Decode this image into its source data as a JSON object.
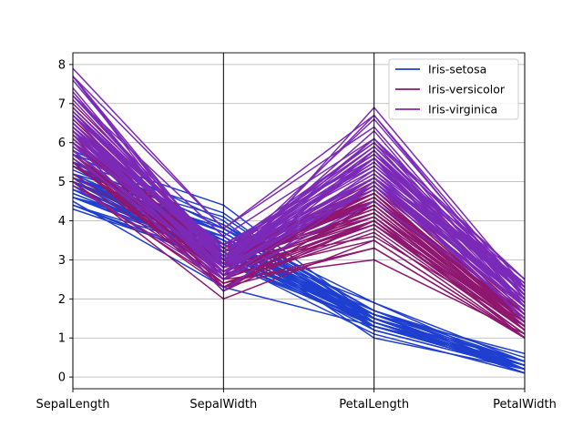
{
  "chart_data": {
    "type": "parallel_coordinates",
    "title": "",
    "dimensions": [
      "SepalLength",
      "SepalWidth",
      "PetalLength",
      "PetalWidth"
    ],
    "ylim": [
      -0.3,
      8.3
    ],
    "yticks": [
      0,
      1,
      2,
      3,
      4,
      5,
      6,
      7,
      8
    ],
    "grid": true,
    "legend_position": "top-right",
    "series": [
      {
        "name": "Iris-setosa",
        "color": "#1f3fd0",
        "lines": [
          [
            5.1,
            3.5,
            1.4,
            0.2
          ],
          [
            4.9,
            3.0,
            1.4,
            0.2
          ],
          [
            4.7,
            3.2,
            1.3,
            0.2
          ],
          [
            4.6,
            3.1,
            1.5,
            0.2
          ],
          [
            5.0,
            3.6,
            1.4,
            0.2
          ],
          [
            5.4,
            3.9,
            1.7,
            0.4
          ],
          [
            4.6,
            3.4,
            1.4,
            0.3
          ],
          [
            5.0,
            3.4,
            1.5,
            0.2
          ],
          [
            4.4,
            2.9,
            1.4,
            0.2
          ],
          [
            4.9,
            3.1,
            1.5,
            0.1
          ],
          [
            5.4,
            3.7,
            1.5,
            0.2
          ],
          [
            4.8,
            3.4,
            1.6,
            0.2
          ],
          [
            4.8,
            3.0,
            1.4,
            0.1
          ],
          [
            4.3,
            3.0,
            1.1,
            0.1
          ],
          [
            5.8,
            4.0,
            1.2,
            0.2
          ],
          [
            5.7,
            4.4,
            1.5,
            0.4
          ],
          [
            5.4,
            3.9,
            1.3,
            0.4
          ],
          [
            5.1,
            3.5,
            1.4,
            0.3
          ],
          [
            5.7,
            3.8,
            1.7,
            0.3
          ],
          [
            5.1,
            3.8,
            1.5,
            0.3
          ],
          [
            5.4,
            3.4,
            1.7,
            0.2
          ],
          [
            5.1,
            3.7,
            1.5,
            0.4
          ],
          [
            4.6,
            3.6,
            1.0,
            0.2
          ],
          [
            5.1,
            3.3,
            1.7,
            0.5
          ],
          [
            4.8,
            3.4,
            1.9,
            0.2
          ],
          [
            5.0,
            3.0,
            1.6,
            0.2
          ],
          [
            5.0,
            3.4,
            1.6,
            0.4
          ],
          [
            5.2,
            3.5,
            1.5,
            0.2
          ],
          [
            5.2,
            3.4,
            1.4,
            0.2
          ],
          [
            4.7,
            3.2,
            1.6,
            0.2
          ],
          [
            4.8,
            3.1,
            1.6,
            0.2
          ],
          [
            5.4,
            3.4,
            1.5,
            0.4
          ],
          [
            5.2,
            4.1,
            1.5,
            0.1
          ],
          [
            5.5,
            4.2,
            1.4,
            0.2
          ],
          [
            4.9,
            3.1,
            1.5,
            0.1
          ],
          [
            5.0,
            3.2,
            1.2,
            0.2
          ],
          [
            5.5,
            3.5,
            1.3,
            0.2
          ],
          [
            4.4,
            3.0,
            1.3,
            0.2
          ],
          [
            5.1,
            3.4,
            1.5,
            0.2
          ],
          [
            5.0,
            3.5,
            1.3,
            0.3
          ],
          [
            4.5,
            2.3,
            1.3,
            0.3
          ],
          [
            4.4,
            3.2,
            1.3,
            0.2
          ],
          [
            5.0,
            3.5,
            1.6,
            0.6
          ],
          [
            5.1,
            3.8,
            1.9,
            0.4
          ],
          [
            4.8,
            3.0,
            1.4,
            0.3
          ],
          [
            5.1,
            3.8,
            1.6,
            0.2
          ],
          [
            4.6,
            3.2,
            1.4,
            0.2
          ],
          [
            5.3,
            3.7,
            1.5,
            0.2
          ],
          [
            5.0,
            3.3,
            1.4,
            0.2
          ]
        ]
      },
      {
        "name": "Iris-versicolor",
        "color": "#8e1770",
        "lines": [
          [
            7.0,
            3.2,
            4.7,
            1.4
          ],
          [
            6.4,
            3.2,
            4.5,
            1.5
          ],
          [
            6.9,
            3.1,
            4.9,
            1.5
          ],
          [
            5.5,
            2.3,
            4.0,
            1.3
          ],
          [
            6.5,
            2.8,
            4.6,
            1.5
          ],
          [
            5.7,
            2.8,
            4.5,
            1.3
          ],
          [
            6.3,
            3.3,
            4.7,
            1.6
          ],
          [
            4.9,
            2.4,
            3.3,
            1.0
          ],
          [
            6.6,
            2.9,
            4.6,
            1.3
          ],
          [
            5.2,
            2.7,
            3.9,
            1.4
          ],
          [
            5.0,
            2.0,
            3.5,
            1.0
          ],
          [
            5.9,
            3.0,
            4.2,
            1.5
          ],
          [
            6.0,
            2.2,
            4.0,
            1.0
          ],
          [
            6.1,
            2.9,
            4.7,
            1.4
          ],
          [
            5.6,
            2.9,
            3.6,
            1.3
          ],
          [
            6.7,
            3.1,
            4.4,
            1.4
          ],
          [
            5.6,
            3.0,
            4.5,
            1.5
          ],
          [
            5.8,
            2.7,
            4.1,
            1.0
          ],
          [
            6.2,
            2.2,
            4.5,
            1.5
          ],
          [
            5.6,
            2.5,
            3.9,
            1.1
          ],
          [
            5.9,
            3.2,
            4.8,
            1.8
          ],
          [
            6.1,
            2.8,
            4.0,
            1.3
          ],
          [
            6.3,
            2.5,
            4.9,
            1.5
          ],
          [
            6.1,
            2.8,
            4.7,
            1.2
          ],
          [
            6.4,
            2.9,
            4.3,
            1.3
          ],
          [
            6.6,
            3.0,
            4.4,
            1.4
          ],
          [
            6.8,
            2.8,
            4.8,
            1.4
          ],
          [
            6.7,
            3.0,
            5.0,
            1.7
          ],
          [
            6.0,
            2.9,
            4.5,
            1.5
          ],
          [
            5.7,
            2.6,
            3.5,
            1.0
          ],
          [
            5.5,
            2.4,
            3.8,
            1.1
          ],
          [
            5.5,
            2.4,
            3.7,
            1.0
          ],
          [
            5.8,
            2.7,
            3.9,
            1.2
          ],
          [
            6.0,
            2.7,
            5.1,
            1.6
          ],
          [
            5.4,
            3.0,
            4.5,
            1.5
          ],
          [
            6.0,
            3.4,
            4.5,
            1.6
          ],
          [
            6.7,
            3.1,
            4.7,
            1.5
          ],
          [
            6.3,
            2.3,
            4.4,
            1.3
          ],
          [
            5.6,
            3.0,
            4.1,
            1.3
          ],
          [
            5.5,
            2.5,
            4.0,
            1.3
          ],
          [
            5.5,
            2.6,
            4.4,
            1.2
          ],
          [
            6.1,
            3.0,
            4.6,
            1.4
          ],
          [
            5.8,
            2.6,
            4.0,
            1.2
          ],
          [
            5.0,
            2.3,
            3.3,
            1.0
          ],
          [
            5.6,
            2.7,
            4.2,
            1.3
          ],
          [
            5.7,
            3.0,
            4.2,
            1.2
          ],
          [
            5.7,
            2.9,
            4.2,
            1.3
          ],
          [
            6.2,
            2.9,
            4.3,
            1.3
          ],
          [
            5.1,
            2.5,
            3.0,
            1.1
          ],
          [
            5.7,
            2.8,
            4.1,
            1.3
          ]
        ]
      },
      {
        "name": "Iris-virginica",
        "color": "#7b2ab8",
        "lines": [
          [
            6.3,
            3.3,
            6.0,
            2.5
          ],
          [
            5.8,
            2.7,
            5.1,
            1.9
          ],
          [
            7.1,
            3.0,
            5.9,
            2.1
          ],
          [
            6.3,
            2.9,
            5.6,
            1.8
          ],
          [
            6.5,
            3.0,
            5.8,
            2.2
          ],
          [
            7.6,
            3.0,
            6.6,
            2.1
          ],
          [
            4.9,
            2.5,
            4.5,
            1.7
          ],
          [
            7.3,
            2.9,
            6.3,
            1.8
          ],
          [
            6.7,
            2.5,
            5.8,
            1.8
          ],
          [
            7.2,
            3.6,
            6.1,
            2.5
          ],
          [
            6.5,
            3.2,
            5.1,
            2.0
          ],
          [
            6.4,
            2.7,
            5.3,
            1.9
          ],
          [
            6.8,
            3.0,
            5.5,
            2.1
          ],
          [
            5.7,
            2.5,
            5.0,
            2.0
          ],
          [
            5.8,
            2.8,
            5.1,
            2.4
          ],
          [
            6.4,
            3.2,
            5.3,
            2.3
          ],
          [
            6.5,
            3.0,
            5.5,
            1.8
          ],
          [
            7.7,
            3.8,
            6.7,
            2.2
          ],
          [
            7.7,
            2.6,
            6.9,
            2.3
          ],
          [
            6.0,
            2.2,
            5.0,
            1.5
          ],
          [
            6.9,
            3.2,
            5.7,
            2.3
          ],
          [
            5.6,
            2.8,
            4.9,
            2.0
          ],
          [
            7.7,
            2.8,
            6.7,
            2.0
          ],
          [
            6.3,
            2.7,
            4.9,
            1.8
          ],
          [
            6.7,
            3.3,
            5.7,
            2.1
          ],
          [
            7.2,
            3.2,
            6.0,
            1.8
          ],
          [
            6.2,
            2.8,
            4.8,
            1.8
          ],
          [
            6.1,
            3.0,
            4.9,
            1.8
          ],
          [
            6.4,
            2.8,
            5.6,
            2.1
          ],
          [
            7.2,
            3.0,
            5.8,
            1.6
          ],
          [
            7.4,
            2.8,
            6.1,
            1.9
          ],
          [
            7.9,
            3.8,
            6.4,
            2.0
          ],
          [
            6.4,
            2.8,
            5.6,
            2.2
          ],
          [
            6.3,
            2.8,
            5.1,
            1.5
          ],
          [
            6.1,
            2.6,
            5.6,
            1.4
          ],
          [
            7.7,
            3.0,
            6.1,
            2.3
          ],
          [
            6.3,
            3.4,
            5.6,
            2.4
          ],
          [
            6.4,
            3.1,
            5.5,
            1.8
          ],
          [
            6.0,
            3.0,
            4.8,
            1.8
          ],
          [
            6.9,
            3.1,
            5.4,
            2.1
          ],
          [
            6.7,
            3.1,
            5.6,
            2.4
          ],
          [
            6.9,
            3.1,
            5.1,
            2.3
          ],
          [
            5.8,
            2.7,
            5.1,
            1.9
          ],
          [
            6.8,
            3.2,
            5.9,
            2.3
          ],
          [
            6.7,
            3.3,
            5.7,
            2.5
          ],
          [
            6.7,
            3.0,
            5.2,
            2.3
          ],
          [
            6.3,
            2.5,
            5.0,
            1.9
          ],
          [
            6.5,
            3.0,
            5.2,
            2.0
          ],
          [
            6.2,
            3.4,
            5.4,
            2.3
          ],
          [
            5.9,
            3.0,
            5.1,
            1.8
          ]
        ]
      }
    ]
  }
}
